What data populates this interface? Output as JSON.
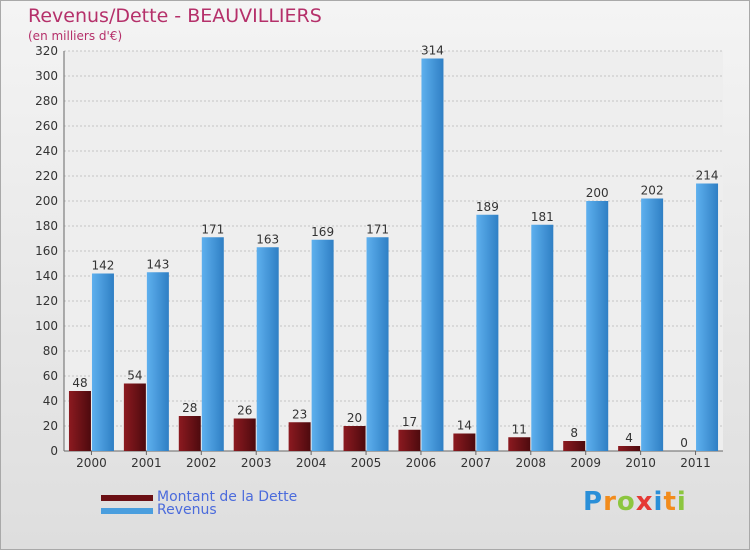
{
  "header": {
    "title": "Revenus/Dette - BEAUVILLIERS",
    "subtitle": "(en milliers d'€)"
  },
  "legend": {
    "placement": "bottom-left",
    "items": [
      {
        "label": "Montant de la Dette",
        "color": "#6b0f14"
      },
      {
        "label": "Revenus",
        "color": "#4a9ede"
      }
    ]
  },
  "logo": {
    "letters": [
      {
        "char": "P",
        "color": "#2a8fd8"
      },
      {
        "char": "r",
        "color": "#f28c1c"
      },
      {
        "char": "o",
        "color": "#8cc63f"
      },
      {
        "char": "x",
        "color": "#e53935"
      },
      {
        "char": "i",
        "color": "#2a8fd8"
      },
      {
        "char": "t",
        "color": "#f28c1c"
      },
      {
        "char": "i",
        "color": "#8cc63f"
      }
    ]
  },
  "chart_data": {
    "type": "bar",
    "title": "Revenus/Dette - BEAUVILLIERS",
    "subtitle": "(en milliers d'€)",
    "categories": [
      "2000",
      "2001",
      "2002",
      "2003",
      "2004",
      "2005",
      "2006",
      "2007",
      "2008",
      "2009",
      "2010",
      "2011"
    ],
    "series": [
      {
        "name": "Montant de la Dette",
        "color": "#6b0f14",
        "values": [
          48,
          54,
          28,
          26,
          23,
          20,
          17,
          14,
          11,
          8,
          4,
          0
        ]
      },
      {
        "name": "Revenus",
        "color": "#4a9ede",
        "values": [
          142,
          143,
          171,
          163,
          169,
          171,
          314,
          189,
          181,
          200,
          202,
          214
        ]
      }
    ],
    "ylim": [
      0,
      320
    ],
    "yticks": [
      0,
      20,
      40,
      60,
      80,
      100,
      120,
      140,
      160,
      180,
      200,
      220,
      240,
      260,
      280,
      300,
      320
    ],
    "grid": true,
    "legend_placement": "bottom-left",
    "data_labels": true
  }
}
